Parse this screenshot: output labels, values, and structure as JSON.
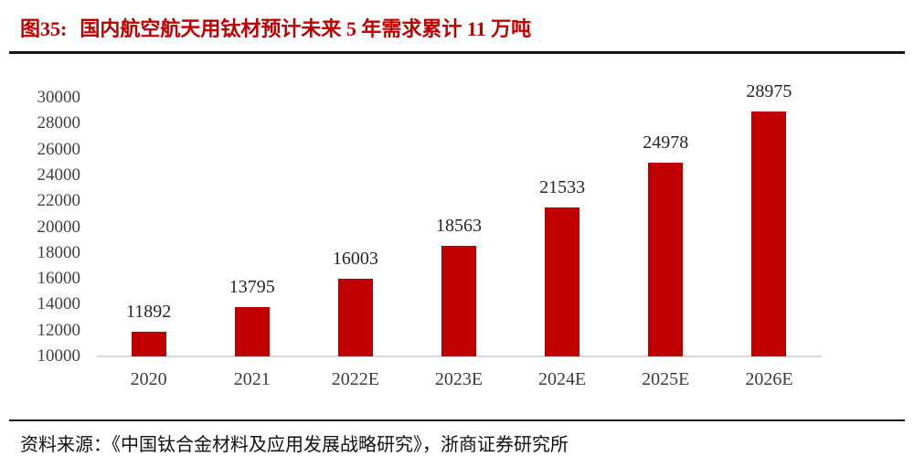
{
  "figure": {
    "label": "图35:",
    "title": "国内航空航天用钛材预计未来 5 年需求累计 11 万吨"
  },
  "source": "资料来源：《中国钛合金材料及应用发展战略研究》，浙商证券研究所",
  "colors": {
    "bar": "#C00000",
    "title": "#C00000",
    "value_label": "#262626",
    "axis_label": "#404040",
    "baseline": "#D9D9D9",
    "rule": "#161616",
    "background": "#FFFFFF"
  },
  "chart_data": {
    "type": "bar",
    "title": "国内航空航天用钛材预计未来 5 年需求累计 11 万吨",
    "categories": [
      "2020",
      "2021",
      "2022E",
      "2023E",
      "2024E",
      "2025E",
      "2026E"
    ],
    "values": [
      11892,
      13795,
      16003,
      18563,
      21533,
      24978,
      28975
    ],
    "value_labels_shown": true,
    "xlabel": "",
    "ylabel": "",
    "ylim": [
      10000,
      30000
    ],
    "ytick_step": 2000,
    "yticks": [
      10000,
      12000,
      14000,
      16000,
      18000,
      20000,
      22000,
      24000,
      26000,
      28000,
      30000
    ],
    "grid": false,
    "legend": "none",
    "bar_color": "#C00000"
  }
}
